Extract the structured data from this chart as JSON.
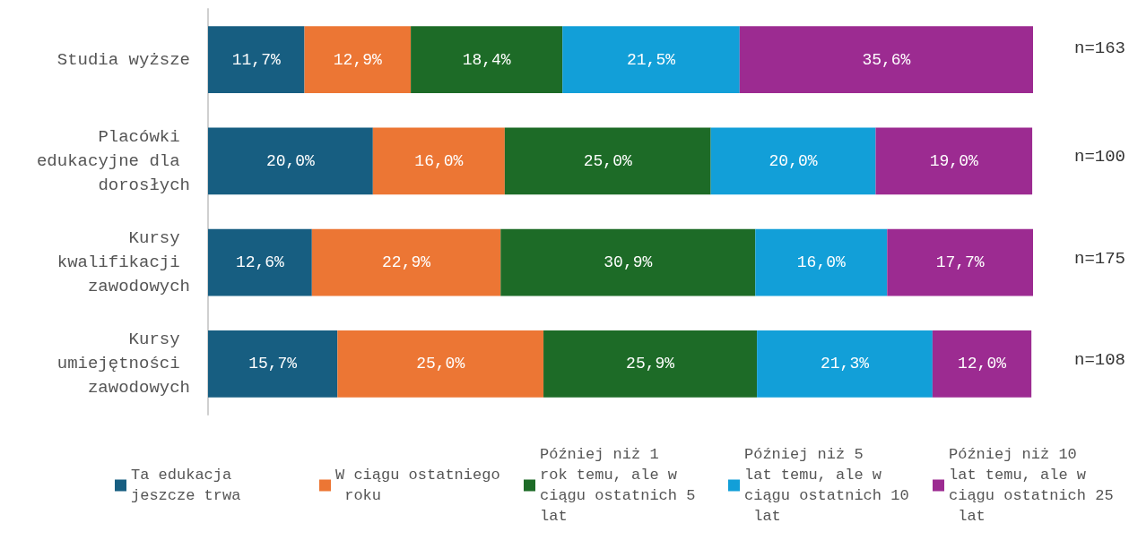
{
  "chart_data": {
    "type": "bar",
    "orientation": "horizontal",
    "stacked": true,
    "legend": "bottom",
    "grid": false,
    "categories": [
      "Studia wyższe",
      "Placówki edukacyjne dla dorosłych",
      "Kursy kwalifikacji zawodowych",
      "Kursy umiejętności zawodowych"
    ],
    "series": [
      {
        "name": "Ta edukacja jeszcze trwa",
        "color": "#175e81",
        "values": [
          11.7,
          20.0,
          12.6,
          15.7
        ],
        "value_labels": [
          "11,7%",
          "20,0%",
          "12,6%",
          "15,7%"
        ]
      },
      {
        "name": "W ciągu ostatniego roku",
        "color": "#ec7634",
        "values": [
          12.9,
          16.0,
          22.9,
          25.0
        ],
        "value_labels": [
          "12,9%",
          "16,0%",
          "22,9%",
          "25,0%"
        ]
      },
      {
        "name": "Później niż 1 rok temu, ale w ciągu ostatnich 5 lat",
        "color": "#1d6b27",
        "values": [
          18.4,
          25.0,
          30.9,
          25.9
        ],
        "value_labels": [
          "18,4%",
          "25,0%",
          "30,9%",
          "25,9%"
        ]
      },
      {
        "name": "Później niż 5 lat temu, ale w ciągu ostatnich 10 lat",
        "color": "#129fd8",
        "values": [
          21.5,
          20.0,
          16.0,
          21.3
        ],
        "value_labels": [
          "21,5%",
          "20,0%",
          "16,0%",
          "21,3%"
        ]
      },
      {
        "name": "Później niż 10 lat temu, ale w ciągu ostatnich 25 lat",
        "color": "#9c2b91",
        "values": [
          35.6,
          19.0,
          17.7,
          12.0
        ],
        "value_labels": [
          "35,6%",
          "19,0%",
          "17,7%",
          "12,0%"
        ]
      }
    ],
    "annotations": [
      "n=163",
      "n=100",
      "n=175",
      "n=108"
    ]
  }
}
